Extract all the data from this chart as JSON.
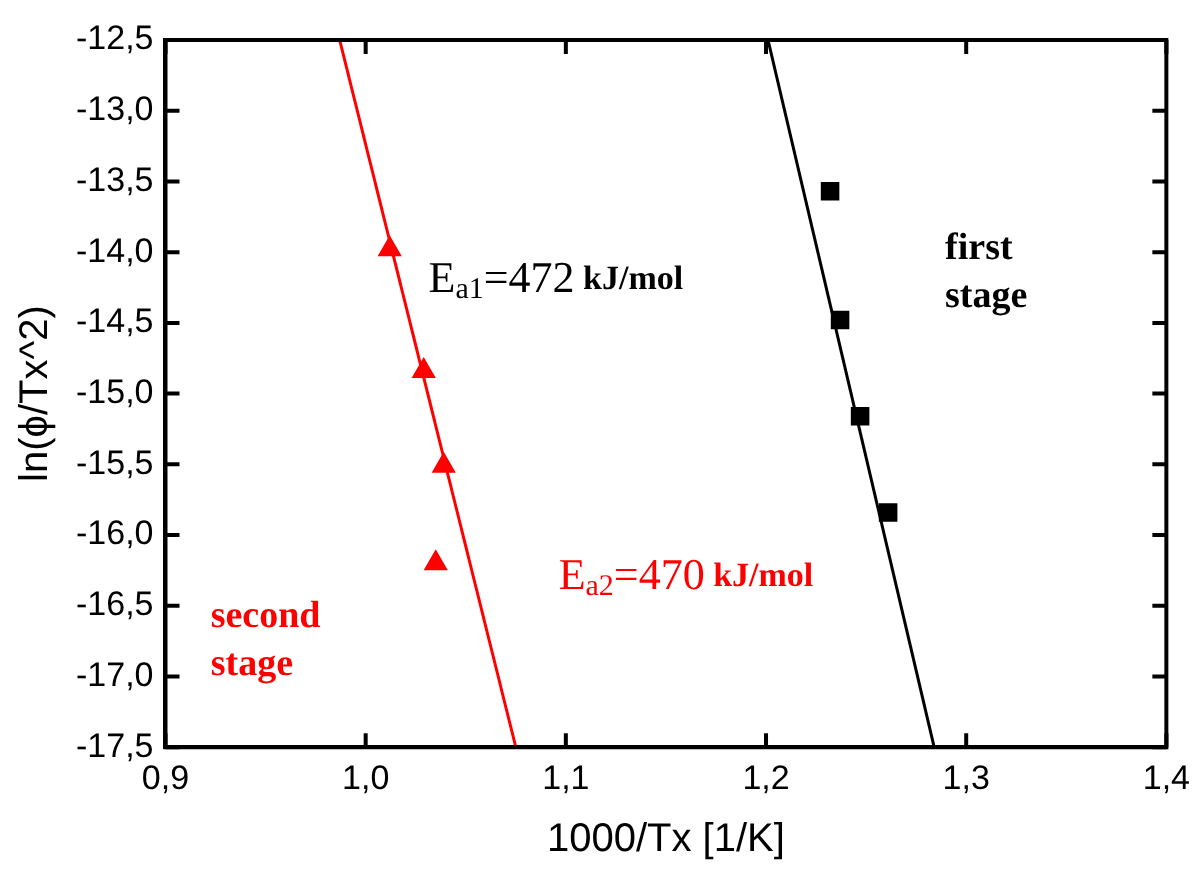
{
  "chart_data": {
    "type": "scatter",
    "xlabel": "1000/Tx [1/K]",
    "ylabel": "ln(ϕ/Tx^2)",
    "xlim": [
      0.9,
      1.4
    ],
    "xticks": [
      {
        "value": 0.9,
        "label": "0,9"
      },
      {
        "value": 1.0,
        "label": "1,0"
      },
      {
        "value": 1.1,
        "label": "1,1"
      },
      {
        "value": 1.2,
        "label": "1,2"
      },
      {
        "value": 1.3,
        "label": "1,3"
      },
      {
        "value": 1.4,
        "label": "1,4"
      }
    ],
    "ylim": [
      -17.5,
      -12.5
    ],
    "yticks": [
      {
        "value": -17.5,
        "label": "-17,5"
      },
      {
        "value": -17,
        "label": "-17,0"
      },
      {
        "value": -16.5,
        "label": "-16,5"
      },
      {
        "value": -16,
        "label": "-16,0"
      },
      {
        "value": -15.5,
        "label": "-15,5"
      },
      {
        "value": -15,
        "label": "-15,0"
      },
      {
        "value": -14.5,
        "label": "-14,5"
      },
      {
        "value": -14,
        "label": "-14,0"
      },
      {
        "value": -13.5,
        "label": "-13,5"
      },
      {
        "value": -13,
        "label": "-13,0"
      },
      {
        "value": -12.5,
        "label": "-12,5"
      }
    ],
    "grid": false,
    "legend": false,
    "series": [
      {
        "marker": "triangle",
        "color": "#ff0000",
        "x": [
          1.012,
          1.029,
          1.039,
          1.035
        ],
        "values": [
          -13.98,
          -14.84,
          -15.51,
          -16.2
        ]
      },
      {
        "type": "line",
        "marker": "none",
        "color": "#ff0000",
        "x": [
          0.987,
          1.075
        ],
        "values": [
          -12.5,
          -17.5
        ]
      },
      {
        "marker": "square",
        "color": "#000000",
        "x": [
          1.232,
          1.237,
          1.247,
          1.261
        ],
        "values": [
          -13.57,
          -14.48,
          -15.16,
          -15.84
        ]
      },
      {
        "type": "line",
        "marker": "none",
        "color": "#000000",
        "x": [
          1.201,
          1.284
        ],
        "values": [
          -12.5,
          -17.5
        ]
      }
    ],
    "annotations": [
      "E$_{a1}$=472 kJ/mol",
      "first stage",
      "second stage",
      "E$_{a2}$=470 kJ/mol"
    ]
  }
}
